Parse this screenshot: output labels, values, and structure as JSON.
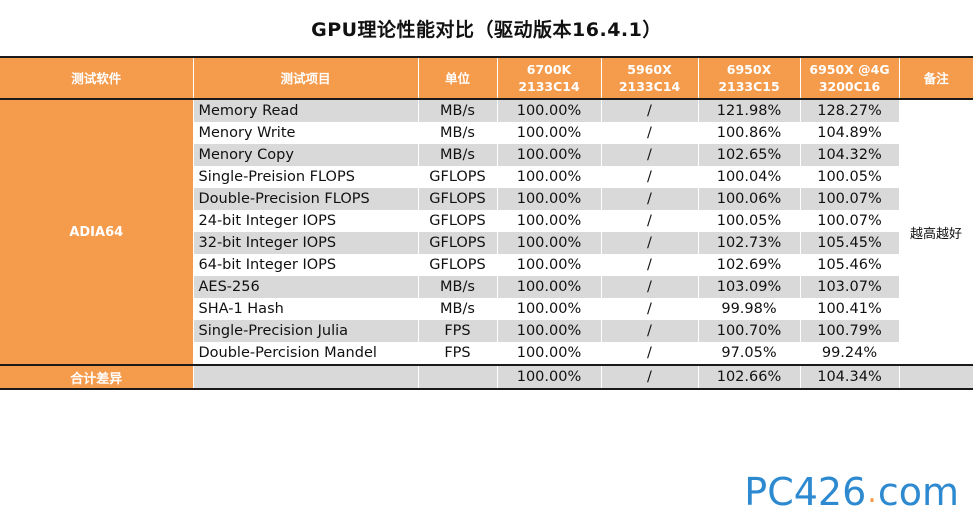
{
  "title": "GPU理论性能对比（驱动版本16.4.1）",
  "colors": {
    "header_bg": "#f59b4c",
    "alt_row": "#d9d9d9",
    "logo": "#2d8ad1"
  },
  "headers": {
    "software": "测试软件",
    "item": "测试项目",
    "unit": "单位",
    "col1": "6700K\n2133C14",
    "col2": "5960X\n2133C14",
    "col3": "6950X\n2133C15",
    "col4": "6950X @4G\n3200C16",
    "note": "备注"
  },
  "software_name": "ADIA64",
  "note_text": "越高越好",
  "rows": [
    {
      "item": "Memory Read",
      "unit": "MB/s",
      "v1": "100.00%",
      "v2": "/",
      "v3": "121.98%",
      "v4": "128.27%"
    },
    {
      "item": "Menory Write",
      "unit": "MB/s",
      "v1": "100.00%",
      "v2": "/",
      "v3": "100.86%",
      "v4": "104.89%"
    },
    {
      "item": "Menory Copy",
      "unit": "MB/s",
      "v1": "100.00%",
      "v2": "/",
      "v3": "102.65%",
      "v4": "104.32%"
    },
    {
      "item": "Single-Preision FLOPS",
      "unit": "GFLOPS",
      "v1": "100.00%",
      "v2": "/",
      "v3": "100.04%",
      "v4": "100.05%"
    },
    {
      "item": "Double-Precision FLOPS",
      "unit": "GFLOPS",
      "v1": "100.00%",
      "v2": "/",
      "v3": "100.06%",
      "v4": "100.07%"
    },
    {
      "item": "24-bit Integer IOPS",
      "unit": "GFLOPS",
      "v1": "100.00%",
      "v2": "/",
      "v3": "100.05%",
      "v4": "100.07%"
    },
    {
      "item": "32-bit Integer IOPS",
      "unit": "GFLOPS",
      "v1": "100.00%",
      "v2": "/",
      "v3": "102.73%",
      "v4": "105.45%"
    },
    {
      "item": "64-bit Integer IOPS",
      "unit": "GFLOPS",
      "v1": "100.00%",
      "v2": "/",
      "v3": "102.69%",
      "v4": "105.46%"
    },
    {
      "item": "AES-256",
      "unit": "MB/s",
      "v1": "100.00%",
      "v2": "/",
      "v3": "103.09%",
      "v4": "103.07%"
    },
    {
      "item": "SHA-1 Hash",
      "unit": "MB/s",
      "v1": "100.00%",
      "v2": "/",
      "v3": "99.98%",
      "v4": "100.41%"
    },
    {
      "item": "Single-Precision Julia",
      "unit": "FPS",
      "v1": "100.00%",
      "v2": "/",
      "v3": "100.70%",
      "v4": "100.79%"
    },
    {
      "item": "Double-Percision Mandel",
      "unit": "FPS",
      "v1": "100.00%",
      "v2": "/",
      "v3": "97.05%",
      "v4": "99.24%"
    }
  ],
  "total": {
    "label": "合计差异",
    "v1": "100.00%",
    "v2": "/",
    "v3": "102.66%",
    "v4": "104.34%"
  },
  "logo": {
    "part1": "PC",
    "part2": "426",
    "dot": ".",
    "part3": "com"
  }
}
